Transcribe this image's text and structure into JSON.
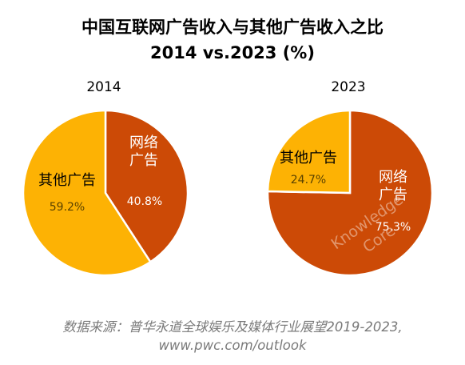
{
  "title": {
    "line1": "中国互联网广告收入与其他广告收入之比",
    "line2": "2014 vs.2023 (%)"
  },
  "chart_data": [
    {
      "type": "pie",
      "title": "2014",
      "slices": [
        {
          "label_lines": [
            "网络",
            "广告"
          ],
          "value": 40.8,
          "value_text": "40.8%",
          "color": "#CC4A06"
        },
        {
          "label_lines": [
            "其他广告"
          ],
          "value": 59.2,
          "value_text": "59.2%",
          "color": "#FDB204"
        }
      ]
    },
    {
      "type": "pie",
      "title": "2023",
      "slices": [
        {
          "label_lines": [
            "网络",
            "广告"
          ],
          "value": 75.3,
          "value_text": "75.3%",
          "color": "#CC4A06"
        },
        {
          "label_lines": [
            "其他广告"
          ],
          "value": 24.7,
          "value_text": "24.7%",
          "color": "#FDB204"
        }
      ]
    }
  ],
  "source": {
    "line1": "数据来源：普华永道全球娱乐及媒体行业展望2019-2023,",
    "line2": "www.pwc.com/outlook"
  },
  "watermark": {
    "line1": "Knowledge",
    "line2": "Core"
  }
}
